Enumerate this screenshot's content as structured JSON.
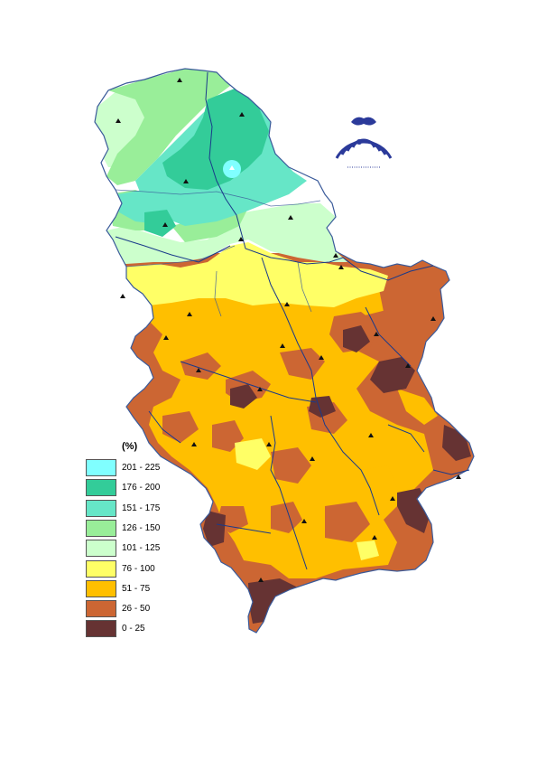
{
  "map": {
    "legend": {
      "title": "(%)",
      "classes": [
        {
          "label": "201 - 225",
          "color": "#80ffff"
        },
        {
          "label": "176 - 200",
          "color": "#33cc99"
        },
        {
          "label": "151 - 175",
          "color": "#66e6c7"
        },
        {
          "label": "126 - 150",
          "color": "#99ee99"
        },
        {
          "label": "101 - 125",
          "color": "#ccffcc"
        },
        {
          "label": "76 - 100",
          "color": "#ffff66"
        },
        {
          "label": "51 - 75",
          "color": "#ffbf00"
        },
        {
          "label": "26 - 50",
          "color": "#cc6633"
        },
        {
          "label": "0 - 25",
          "color": "#663333"
        }
      ]
    },
    "colors": {
      "background": "#ffffff",
      "rivers": "#1a3a8a",
      "borders": "#3a5a9a",
      "stations": "#111111",
      "logo": "#2b3a9a"
    },
    "logo_icon": "hydrometeorological-service-emblem-icon"
  }
}
